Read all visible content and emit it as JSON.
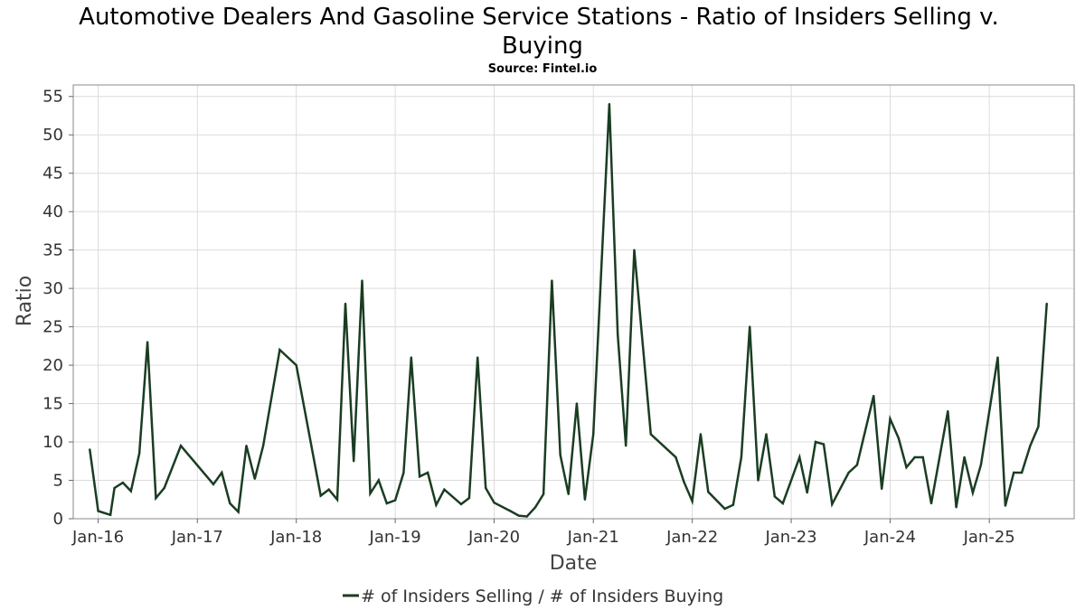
{
  "chart_data": {
    "type": "line",
    "title": "Automotive Dealers And Gasoline Service Stations - Ratio of Insiders Selling v. Buying",
    "title_lines": [
      "Automotive Dealers And Gasoline Service Stations - Ratio of Insiders Selling v.",
      "Buying"
    ],
    "subtitle": "Source: Fintel.io",
    "xlabel": "Date",
    "ylabel": "Ratio",
    "ylim": [
      0,
      56.5
    ],
    "xlim": [
      "2015-10-01",
      "2025-11-10"
    ],
    "yticks": [
      0,
      5,
      10,
      15,
      20,
      25,
      30,
      35,
      40,
      45,
      50,
      55
    ],
    "xticks": [
      {
        "date": "2016-01-01",
        "label": "Jan-16"
      },
      {
        "date": "2017-01-01",
        "label": "Jan-17"
      },
      {
        "date": "2018-01-01",
        "label": "Jan-18"
      },
      {
        "date": "2019-01-01",
        "label": "Jan-19"
      },
      {
        "date": "2020-01-01",
        "label": "Jan-20"
      },
      {
        "date": "2021-01-01",
        "label": "Jan-21"
      },
      {
        "date": "2022-01-01",
        "label": "Jan-22"
      },
      {
        "date": "2023-01-01",
        "label": "Jan-23"
      },
      {
        "date": "2024-01-01",
        "label": "Jan-24"
      },
      {
        "date": "2025-01-01",
        "label": "Jan-25"
      }
    ],
    "grid": true,
    "legend_position": "bottom",
    "series": [
      {
        "name": "# of Insiders Selling / # of Insiders Buying",
        "color": "#1a3d22",
        "points": [
          [
            "2015-12-01",
            9.0
          ],
          [
            "2016-01-01",
            1.0
          ],
          [
            "2016-02-15",
            0.5
          ],
          [
            "2016-03-01",
            4.0
          ],
          [
            "2016-04-01",
            4.7
          ],
          [
            "2016-05-01",
            3.6
          ],
          [
            "2016-06-01",
            8.5
          ],
          [
            "2016-07-01",
            23.0
          ],
          [
            "2016-08-01",
            2.7
          ],
          [
            "2016-09-01",
            4.0
          ],
          [
            "2016-11-01",
            9.5
          ],
          [
            "2017-03-01",
            4.5
          ],
          [
            "2017-04-01",
            6.0
          ],
          [
            "2017-05-01",
            2.0
          ],
          [
            "2017-06-01",
            0.9
          ],
          [
            "2017-07-01",
            9.5
          ],
          [
            "2017-08-01",
            5.2
          ],
          [
            "2017-09-01",
            9.5
          ],
          [
            "2017-11-01",
            22.0
          ],
          [
            "2018-01-01",
            20.0
          ],
          [
            "2018-04-01",
            3.0
          ],
          [
            "2018-05-01",
            3.8
          ],
          [
            "2018-06-01",
            2.5
          ],
          [
            "2018-07-01",
            28.0
          ],
          [
            "2018-08-01",
            7.5
          ],
          [
            "2018-09-01",
            31.0
          ],
          [
            "2018-10-01",
            3.3
          ],
          [
            "2018-11-01",
            5.0
          ],
          [
            "2018-12-01",
            2.0
          ],
          [
            "2019-01-01",
            2.4
          ],
          [
            "2019-02-01",
            6.0
          ],
          [
            "2019-03-01",
            21.0
          ],
          [
            "2019-04-01",
            5.5
          ],
          [
            "2019-05-01",
            6.0
          ],
          [
            "2019-06-01",
            1.8
          ],
          [
            "2019-07-01",
            3.8
          ],
          [
            "2019-09-01",
            1.9
          ],
          [
            "2019-10-01",
            2.7
          ],
          [
            "2019-11-01",
            21.0
          ],
          [
            "2019-12-01",
            4.0
          ],
          [
            "2020-01-01",
            2.1
          ],
          [
            "2020-03-01",
            1.0
          ],
          [
            "2020-04-01",
            0.4
          ],
          [
            "2020-05-01",
            0.3
          ],
          [
            "2020-06-01",
            1.5
          ],
          [
            "2020-07-01",
            3.2
          ],
          [
            "2020-08-01",
            31.0
          ],
          [
            "2020-09-01",
            8.3
          ],
          [
            "2020-10-01",
            3.2
          ],
          [
            "2020-11-01",
            15.0
          ],
          [
            "2020-12-01",
            2.5
          ],
          [
            "2021-01-01",
            11.0
          ],
          [
            "2021-03-01",
            54.0
          ],
          [
            "2021-04-01",
            24.0
          ],
          [
            "2021-05-01",
            9.5
          ],
          [
            "2021-06-01",
            35.0
          ],
          [
            "2021-08-01",
            11.0
          ],
          [
            "2021-11-01",
            8.0
          ],
          [
            "2021-12-01",
            4.8
          ],
          [
            "2022-01-01",
            2.3
          ],
          [
            "2022-02-01",
            11.0
          ],
          [
            "2022-03-01",
            3.5
          ],
          [
            "2022-05-01",
            1.3
          ],
          [
            "2022-06-01",
            1.8
          ],
          [
            "2022-07-01",
            8.0
          ],
          [
            "2022-08-01",
            25.0
          ],
          [
            "2022-09-01",
            5.0
          ],
          [
            "2022-10-01",
            11.0
          ],
          [
            "2022-11-01",
            2.9
          ],
          [
            "2022-12-01",
            2.0
          ],
          [
            "2023-02-01",
            8.0
          ],
          [
            "2023-03-01",
            3.4
          ],
          [
            "2023-04-01",
            10.0
          ],
          [
            "2023-05-01",
            9.7
          ],
          [
            "2023-06-01",
            1.9
          ],
          [
            "2023-08-01",
            6.0
          ],
          [
            "2023-09-01",
            7.0
          ],
          [
            "2023-11-01",
            16.0
          ],
          [
            "2023-12-01",
            3.9
          ],
          [
            "2024-01-01",
            13.0
          ],
          [
            "2024-02-01",
            10.5
          ],
          [
            "2024-03-01",
            6.7
          ],
          [
            "2024-04-01",
            8.0
          ],
          [
            "2024-05-01",
            8.0
          ],
          [
            "2024-06-01",
            2.0
          ],
          [
            "2024-08-01",
            14.0
          ],
          [
            "2024-09-01",
            1.5
          ],
          [
            "2024-10-01",
            8.0
          ],
          [
            "2024-11-01",
            3.4
          ],
          [
            "2024-12-01",
            7.0
          ],
          [
            "2025-02-01",
            21.0
          ],
          [
            "2025-03-01",
            1.7
          ],
          [
            "2025-04-01",
            6.0
          ],
          [
            "2025-05-01",
            6.0
          ],
          [
            "2025-06-01",
            9.5
          ],
          [
            "2025-07-01",
            12.0
          ],
          [
            "2025-08-01",
            28.0
          ]
        ]
      }
    ]
  }
}
